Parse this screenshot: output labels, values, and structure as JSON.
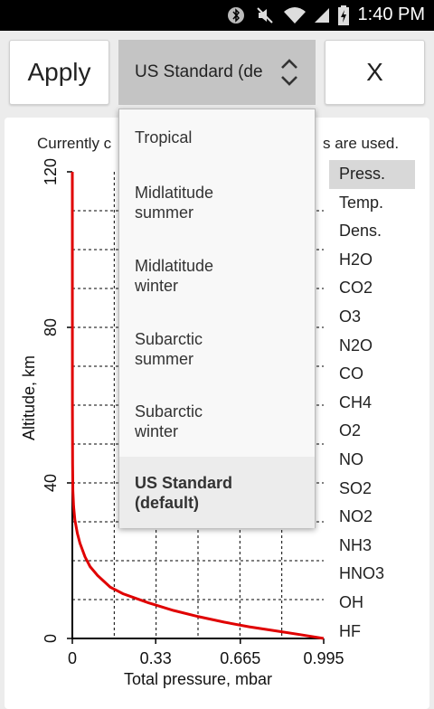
{
  "status_bar": {
    "time": "1:40 PM",
    "icons": [
      "bluetooth-icon",
      "mute-icon",
      "wifi-icon",
      "signal-icon",
      "battery-charging-icon"
    ]
  },
  "toolbar": {
    "apply_label": "Apply",
    "profile_select_value": "US Standard (de",
    "close_label": "X"
  },
  "info_text": {
    "left": "Currently c",
    "right": "s are used."
  },
  "dropdown": {
    "options": [
      {
        "line1": "Tropical",
        "line2": ""
      },
      {
        "line1": "Midlatitude",
        "line2": "summer"
      },
      {
        "line1": "Midlatitude",
        "line2": "winter"
      },
      {
        "line1": "Subarctic",
        "line2": "summer"
      },
      {
        "line1": "Subarctic",
        "line2": "winter"
      },
      {
        "line1": "US Standard",
        "line2": "(default)"
      }
    ],
    "selected_index": 5
  },
  "side_list": {
    "items": [
      "Press.",
      "Temp.",
      "Dens.",
      "H2O",
      "CO2",
      "O3",
      "N2O",
      "CO",
      "CH4",
      "O2",
      "NO",
      "SO2",
      "NO2",
      "NH3",
      "HNO3",
      "OH",
      "HF"
    ],
    "active_index": 0
  },
  "chart_data": {
    "type": "line",
    "xlabel": "Total pressure, mbar",
    "ylabel": "Altitude, km",
    "x_ticks": [
      "0",
      "0.33",
      "0.665",
      "0.995"
    ],
    "y_ticks": [
      "0",
      "40",
      "80",
      "120"
    ],
    "xlim": [
      0,
      0.995
    ],
    "ylim": [
      0,
      120
    ],
    "grid": true,
    "line_color": "#e00000",
    "series": [
      {
        "x": [
          0.995,
          0.9,
          0.8,
          0.7,
          0.6,
          0.5,
          0.4,
          0.3,
          0.2,
          0.15,
          0.1,
          0.07,
          0.05,
          0.03,
          0.02,
          0.01,
          0.005,
          0.002,
          0.001,
          0.0003,
          0.0
        ],
        "y": [
          0,
          1,
          2,
          3,
          4.2,
          5.6,
          7.2,
          9.2,
          11.5,
          13.2,
          16.2,
          18.5,
          21,
          24.5,
          27,
          30.5,
          34,
          38,
          45,
          60,
          120
        ]
      }
    ]
  }
}
